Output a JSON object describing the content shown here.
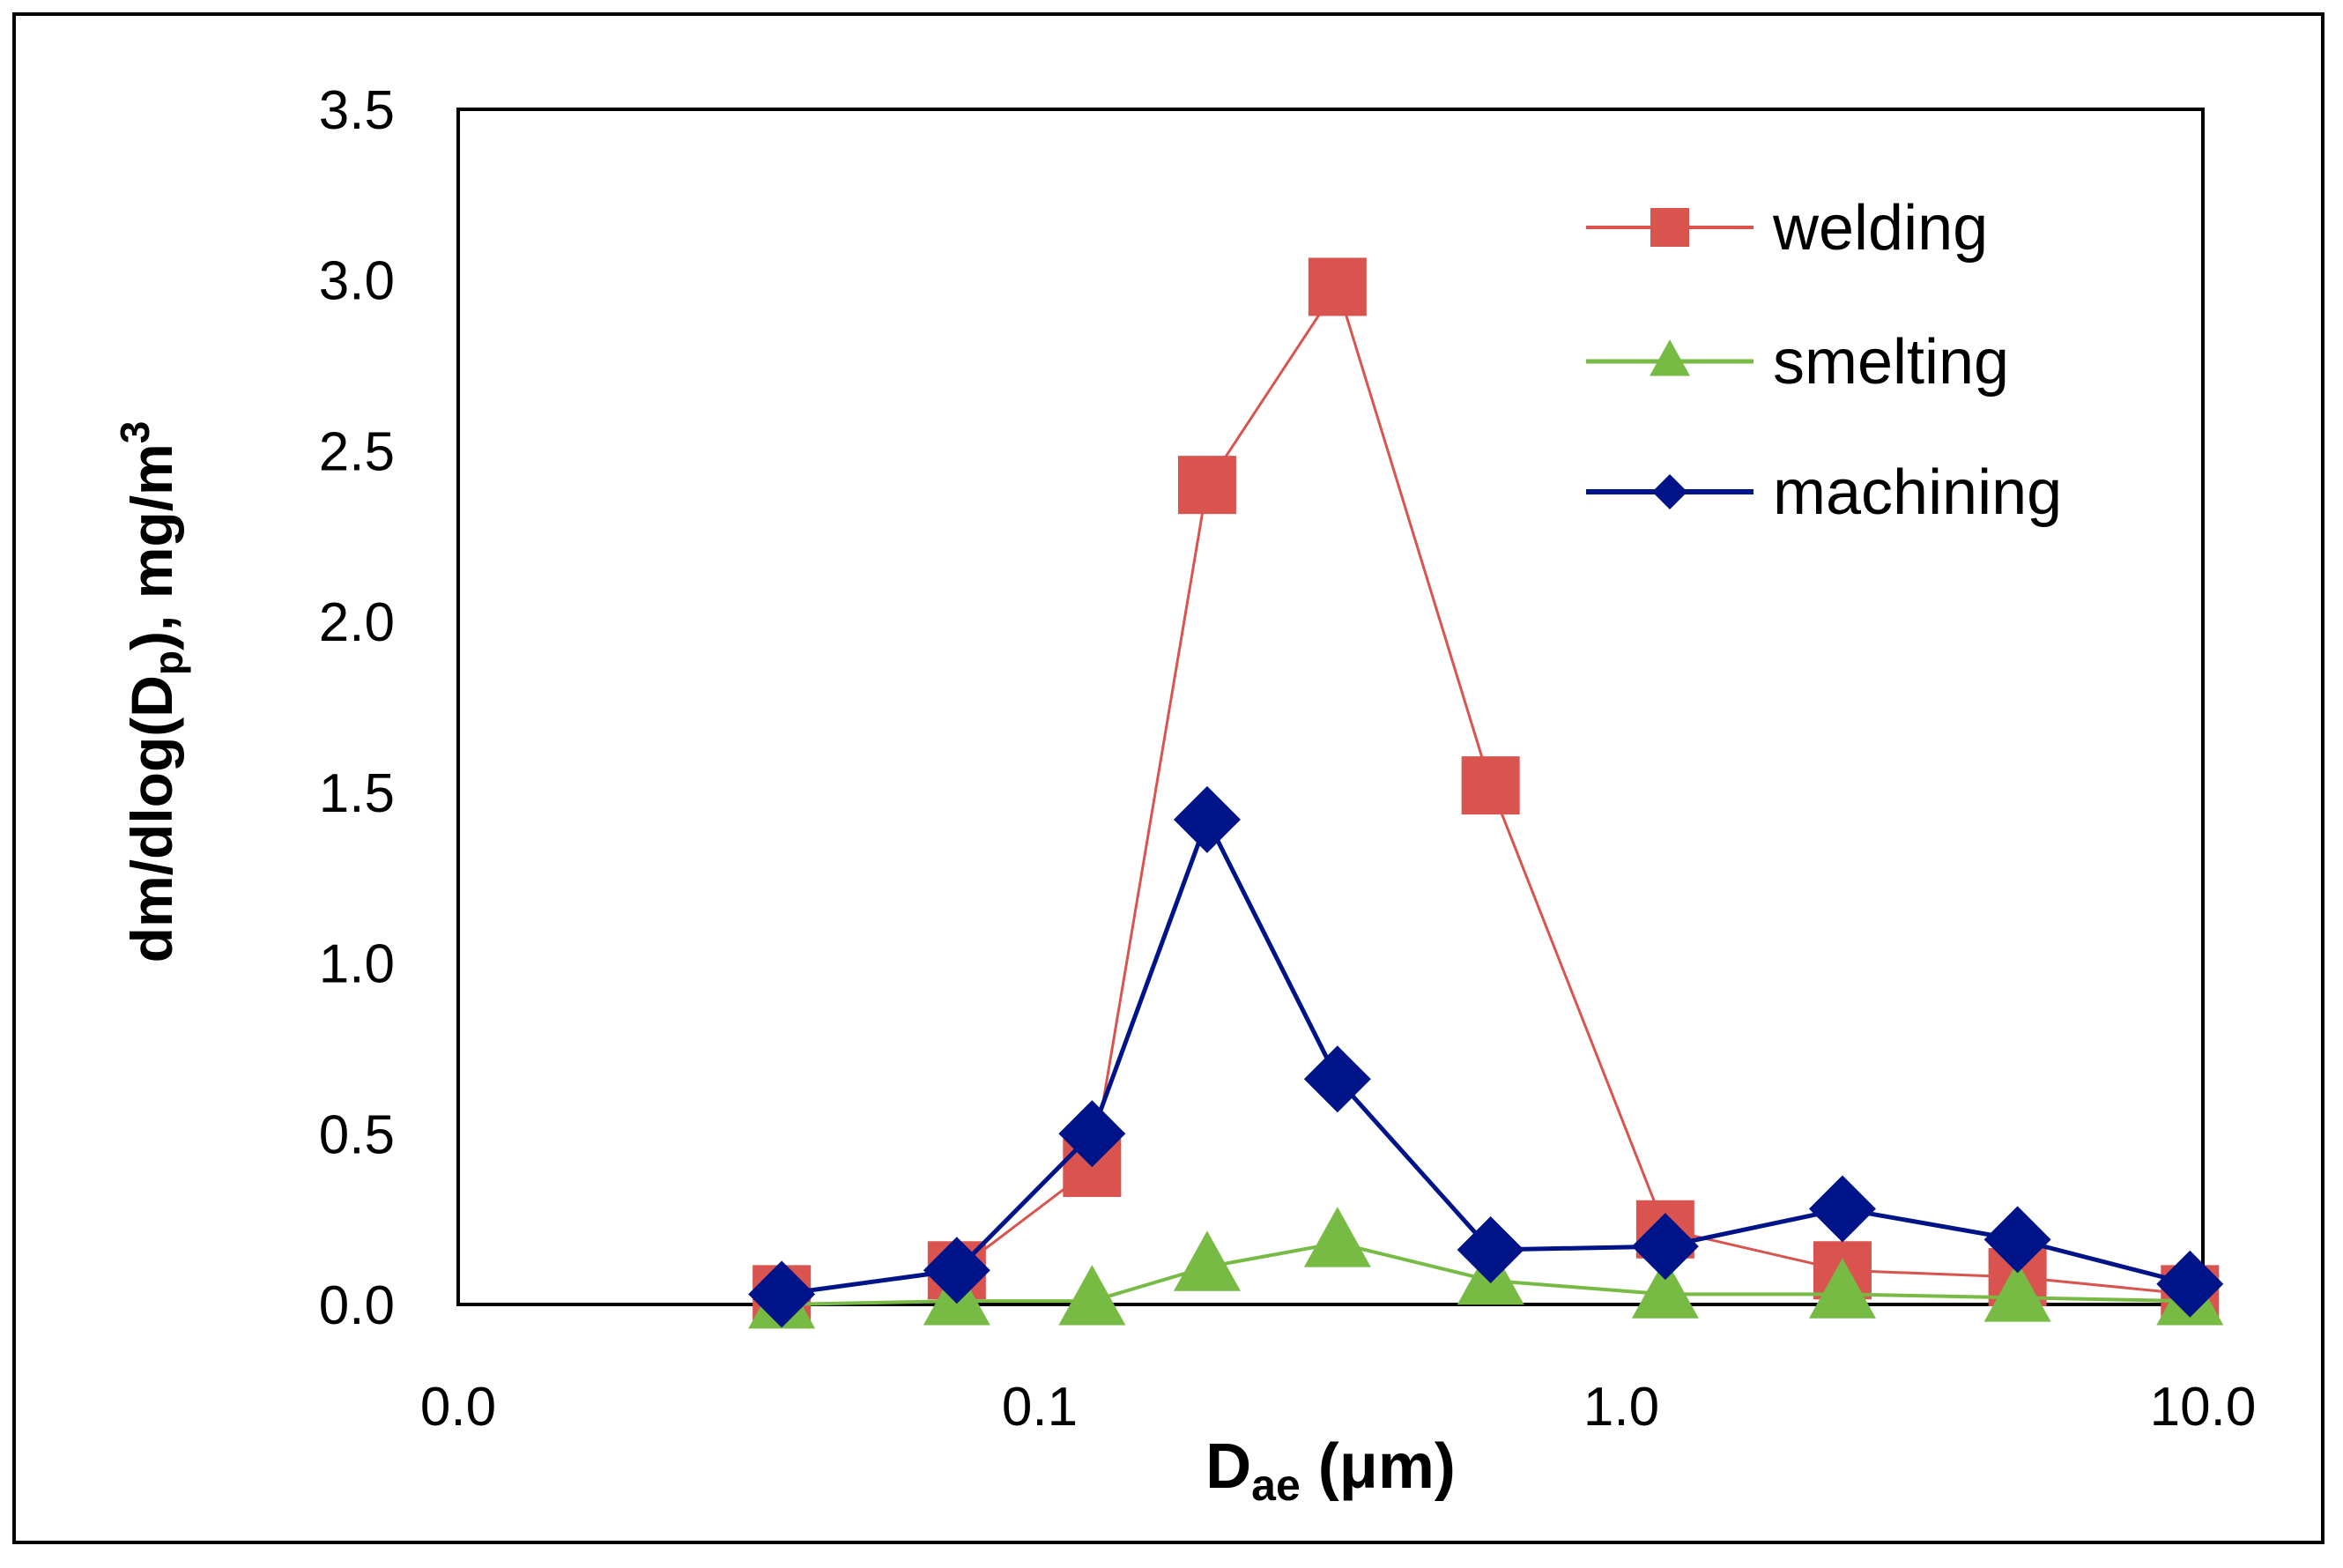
{
  "chart_data": {
    "type": "line",
    "title": "",
    "xlabel_main": "D",
    "xlabel_sub": "ae",
    "xlabel_rest": " (μm)",
    "ylabel_main": "dm/dlog(D",
    "ylabel_sub": "p",
    "ylabel_mid": "), mg/m",
    "ylabel_sup": "3",
    "x_scale": "log",
    "xlim": [
      0.01,
      10
    ],
    "ylim": [
      0,
      3.5
    ],
    "x_tick_values": [
      0.01,
      0.1,
      1,
      10
    ],
    "x_tick_labels": [
      "0.0",
      "0.1",
      "1.0",
      "10.0"
    ],
    "y_tick_values": [
      0,
      0.5,
      1,
      1.5,
      2,
      2.5,
      3,
      3.5
    ],
    "y_tick_labels": [
      "0.0",
      "0.5",
      "1.0",
      "1.5",
      "2.0",
      "2.5",
      "3.0",
      "3.5"
    ],
    "grid": false,
    "legend_position": "top-right",
    "x": [
      0.036,
      0.072,
      0.123,
      0.194,
      0.325,
      0.596,
      1.19,
      2.4,
      4.8,
      9.5
    ],
    "series": [
      {
        "name": "welding",
        "marker": "square",
        "color": "#d9534f",
        "values": [
          0.03,
          0.1,
          0.4,
          2.4,
          2.98,
          1.52,
          0.22,
          0.1,
          0.08,
          0.03
        ]
      },
      {
        "name": "smelting",
        "marker": "triangle",
        "color": "#77bb44",
        "values": [
          0.0,
          0.01,
          0.01,
          0.11,
          0.18,
          0.07,
          0.03,
          0.03,
          0.02,
          0.01
        ]
      },
      {
        "name": "machining",
        "marker": "diamond",
        "color": "#00148a",
        "values": [
          0.03,
          0.1,
          0.5,
          1.42,
          0.66,
          0.16,
          0.17,
          0.28,
          0.19,
          0.06
        ]
      }
    ]
  }
}
